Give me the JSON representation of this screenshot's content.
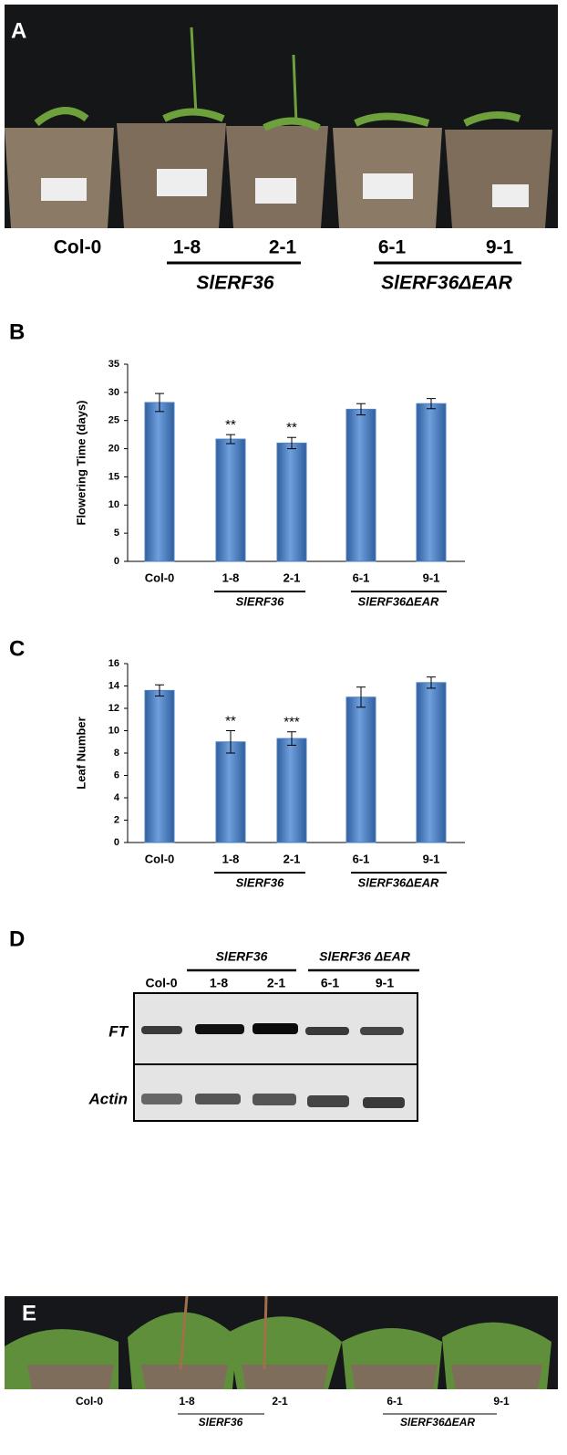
{
  "panels": {
    "A": {
      "letter": "A",
      "labels": [
        "Col-0",
        "1-8",
        "2-1",
        "6-1",
        "9-1"
      ],
      "groups": [
        "SlERF36",
        "SlERF36ΔEAR"
      ]
    },
    "D": {
      "letter": "D",
      "groups": [
        "SlERF36",
        "SlERF36 ΔEAR"
      ],
      "lanes": [
        "Col-0",
        "1-8",
        "2-1",
        "6-1",
        "9-1"
      ],
      "rows": [
        "FT",
        "Actin"
      ]
    },
    "E": {
      "letter": "E",
      "labels": [
        "Col-0",
        "1-8",
        "2-1",
        "6-1",
        "9-1"
      ],
      "groups": [
        "SlERF36",
        "SlERF36ΔEAR"
      ]
    }
  },
  "chart_data": [
    {
      "type": "bar",
      "letter": "B",
      "y_label": "Flowering Time (days)",
      "categories": [
        "Col-0",
        "1-8",
        "2-1",
        "6-1",
        "9-1"
      ],
      "groups": [
        "SlERF36",
        "SlERF36ΔEAR"
      ],
      "values": [
        28.2,
        21.7,
        21,
        27,
        28
      ],
      "errors": [
        1.6,
        0.8,
        1,
        1,
        0.9
      ],
      "significance": [
        null,
        "**",
        "**",
        null,
        null
      ],
      "color": "#4f81bd",
      "ylim": [
        0,
        35
      ],
      "yticks": [
        0,
        5,
        10,
        15,
        20,
        25,
        30,
        35
      ]
    },
    {
      "type": "bar",
      "letter": "C",
      "y_label": "Leaf Number",
      "categories": [
        "Col-0",
        "1-8",
        "2-1",
        "6-1",
        "9-1"
      ],
      "groups": [
        "SlERF36",
        "SlERF36ΔEAR"
      ],
      "values": [
        13.6,
        9,
        9.3,
        13,
        14.3
      ],
      "errors": [
        0.5,
        1,
        0.6,
        0.9,
        0.5
      ],
      "significance": [
        null,
        "**",
        "***",
        null,
        null
      ],
      "color": "#4f81bd",
      "ylim": [
        0,
        16
      ],
      "yticks": [
        0,
        2,
        4,
        6,
        8,
        10,
        12,
        14,
        16
      ]
    }
  ]
}
